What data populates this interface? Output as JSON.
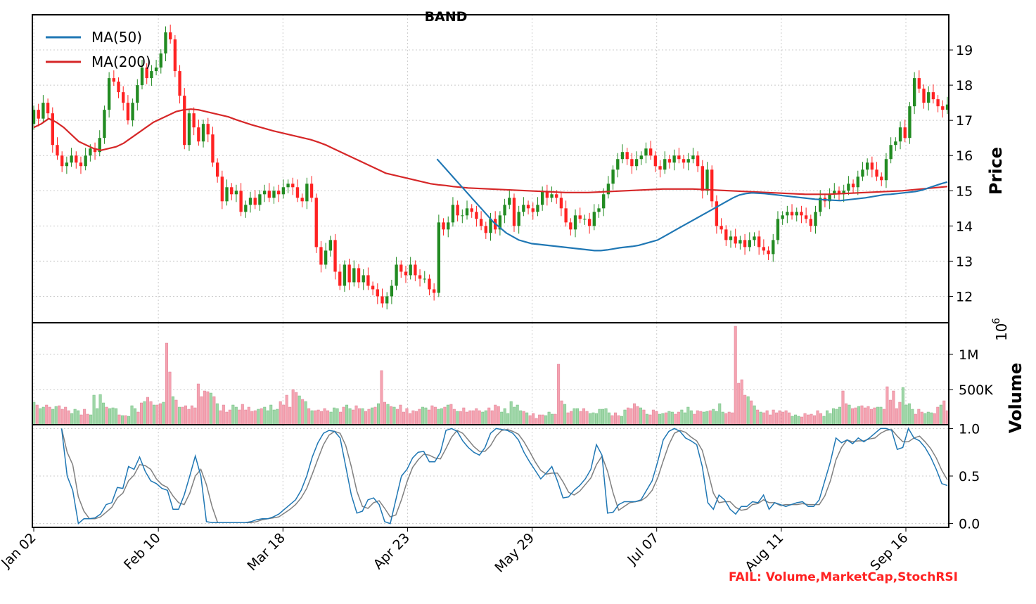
{
  "chart_data": {
    "type": "candlestick",
    "title": "BAND",
    "status_text": "FAIL: Volume,MarketCap,StochRSI",
    "x_tick_labels": [
      "Jan 02",
      "Feb 10",
      "Mar 18",
      "Apr 23",
      "May 29",
      "Jul 07",
      "Aug 11",
      "Sep 16"
    ],
    "legend": [
      {
        "name": "MA(50)",
        "color": "#1f77b4"
      },
      {
        "name": "MA(200)",
        "color": "#d62728"
      }
    ],
    "legend_placement": "top-left",
    "grid": true,
    "colors": {
      "up": "#228b22",
      "down": "#ff2222",
      "volume_up": "#9fd6a8",
      "volume_down": "#f5a3b1",
      "stoch_k": "#1f77b4",
      "stoch_d": "#808080",
      "status": "#ff2222"
    },
    "price_panel": {
      "ylabel": "Price",
      "ylim": [
        11.25,
        20.0
      ],
      "y_ticks": [
        12,
        13,
        14,
        15,
        16,
        17,
        18,
        19
      ],
      "close": [
        17.3,
        17.05,
        17.5,
        17.2,
        16.3,
        16.0,
        15.7,
        15.8,
        16.0,
        15.8,
        15.7,
        16.0,
        16.2,
        16.1,
        16.5,
        17.3,
        18.2,
        18.1,
        17.8,
        17.5,
        17.0,
        17.5,
        18.0,
        18.5,
        18.2,
        18.4,
        18.5,
        18.9,
        19.5,
        19.3,
        18.4,
        17.7,
        16.3,
        17.2,
        16.8,
        16.4,
        16.9,
        16.6,
        15.8,
        15.4,
        14.7,
        15.1,
        14.9,
        15.0,
        14.4,
        14.6,
        14.8,
        14.6,
        14.9,
        15.0,
        14.8,
        15.0,
        14.9,
        15.1,
        15.2,
        15.1,
        14.8,
        14.7,
        15.2,
        14.8,
        13.4,
        12.9,
        13.3,
        13.6,
        12.7,
        12.3,
        12.9,
        12.4,
        12.8,
        12.4,
        12.6,
        12.3,
        12.2,
        12.0,
        11.8,
        12.0,
        12.3,
        12.9,
        12.7,
        12.6,
        12.9,
        12.6,
        12.5,
        12.5,
        12.2,
        12.1,
        14.1,
        13.9,
        14.1,
        14.6,
        14.3,
        14.3,
        14.5,
        14.4,
        14.2,
        14.0,
        13.8,
        14.2,
        13.9,
        14.3,
        14.6,
        14.8,
        14.0,
        14.4,
        14.6,
        14.5,
        14.4,
        14.6,
        15.0,
        14.8,
        14.9,
        14.8,
        14.5,
        14.1,
        13.9,
        14.3,
        14.2,
        14.2,
        14.0,
        14.4,
        14.5,
        14.9,
        15.2,
        15.6,
        15.9,
        16.1,
        15.9,
        15.7,
        15.9,
        16.0,
        16.2,
        16.0,
        15.7,
        15.6,
        15.9,
        15.8,
        16.0,
        15.9,
        15.8,
        15.9,
        16.0,
        15.7,
        15.0,
        15.6,
        14.7,
        14.0,
        13.9,
        13.6,
        13.7,
        13.5,
        13.6,
        13.4,
        13.6,
        13.7,
        13.4,
        13.3,
        13.2,
        13.6,
        14.2,
        14.3,
        14.4,
        14.3,
        14.4,
        14.3,
        14.2,
        14.0,
        14.4,
        14.8,
        14.7,
        14.9,
        15.0,
        14.9,
        15.0,
        15.2,
        15.1,
        15.4,
        15.6,
        15.8,
        15.6,
        15.4,
        15.3,
        15.9,
        16.3,
        16.4,
        16.8,
        16.5,
        17.4,
        18.2,
        17.9,
        17.5,
        17.8,
        17.6,
        17.4,
        17.3,
        17.45
      ],
      "ma50": [
        null,
        null,
        null,
        null,
        null,
        null,
        null,
        null,
        null,
        null,
        null,
        null,
        null,
        null,
        null,
        null,
        null,
        null,
        null,
        null,
        null,
        null,
        null,
        null,
        null,
        null,
        null,
        null,
        null,
        null,
        null,
        null,
        null,
        null,
        null,
        null,
        null,
        null,
        null,
        null,
        null,
        null,
        null,
        null,
        null,
        null,
        null,
        null,
        null,
        null,
        null,
        null,
        null,
        null,
        null,
        null,
        null,
        null,
        null,
        null,
        null,
        null,
        null,
        null,
        15.9,
        15.7,
        15.5,
        15.3,
        15.1,
        14.9,
        14.7,
        14.5,
        14.3,
        14.1,
        13.95,
        13.8,
        13.7,
        13.6,
        13.55,
        13.5,
        13.48,
        13.46,
        13.44,
        13.42,
        13.4,
        13.38,
        13.36,
        13.34,
        13.32,
        13.3,
        13.3,
        13.32,
        13.35,
        13.38,
        13.4,
        13.42,
        13.45,
        13.5,
        13.55,
        13.6,
        13.7,
        13.8,
        13.9,
        14.0,
        14.1,
        14.2,
        14.3,
        14.4,
        14.5,
        14.6,
        14.7,
        14.8,
        14.88,
        14.92,
        14.94,
        14.93,
        14.92,
        14.9,
        14.88,
        14.86,
        14.84,
        14.82,
        14.8,
        14.78,
        14.76,
        14.75,
        14.74,
        14.73,
        14.72,
        14.74,
        14.76,
        14.78,
        14.8,
        14.83,
        14.86,
        14.89,
        14.9,
        14.92,
        14.94,
        14.96,
        14.98,
        15.02,
        15.08,
        15.14,
        15.2,
        15.25
      ],
      "ma200": [
        16.8,
        16.9,
        17.05,
        16.95,
        16.8,
        16.6,
        16.4,
        16.3,
        16.2,
        16.15,
        16.2,
        16.25,
        16.35,
        16.5,
        16.65,
        16.8,
        16.95,
        17.05,
        17.15,
        17.25,
        17.3,
        17.32,
        17.3,
        17.25,
        17.2,
        17.15,
        17.1,
        17.02,
        16.95,
        16.88,
        16.82,
        16.76,
        16.7,
        16.65,
        16.6,
        16.55,
        16.5,
        16.45,
        16.38,
        16.3,
        16.2,
        16.1,
        16.0,
        15.9,
        15.8,
        15.7,
        15.6,
        15.5,
        15.45,
        15.4,
        15.35,
        15.3,
        15.25,
        15.2,
        15.17,
        15.15,
        15.12,
        15.1,
        15.08,
        15.07,
        15.06,
        15.05,
        15.04,
        15.03,
        15.02,
        15.01,
        15.0,
        14.99,
        14.98,
        14.97,
        14.96,
        14.95,
        14.95,
        14.95,
        14.95,
        14.96,
        14.97,
        14.98,
        14.99,
        15.0,
        15.01,
        15.02,
        15.03,
        15.04,
        15.05,
        15.05,
        15.05,
        15.05,
        15.05,
        15.04,
        15.03,
        15.02,
        15.01,
        15.0,
        14.99,
        14.98,
        14.97,
        14.96,
        14.95,
        14.94,
        14.93,
        14.92,
        14.91,
        14.9,
        14.9,
        14.9,
        14.9,
        14.91,
        14.92,
        14.93,
        14.94,
        14.95,
        14.96,
        14.97,
        14.98,
        14.99,
        15.0,
        15.02,
        15.04,
        15.06,
        15.08,
        15.1,
        15.12
      ]
    },
    "volume_panel": {
      "ylabel": "Volume",
      "y_scale_label": "10",
      "y_scale_exponent": "6",
      "ylim": [
        0,
        1450000
      ],
      "y_ticks": [
        500000,
        1000000
      ],
      "y_tick_labels": [
        "500K",
        "1M"
      ],
      "values": [
        320000,
        280000,
        230000,
        250000,
        280000,
        250000,
        220000,
        260000,
        270000,
        220000,
        250000,
        200000,
        160000,
        220000,
        200000,
        140000,
        220000,
        150000,
        140000,
        420000,
        230000,
        430000,
        310000,
        250000,
        230000,
        240000,
        230000,
        140000,
        130000,
        130000,
        120000,
        270000,
        230000,
        180000,
        310000,
        330000,
        390000,
        330000,
        280000,
        280000,
        300000,
        320000,
        1160000,
        750000,
        400000,
        350000,
        250000,
        250000,
        270000,
        220000,
        270000,
        240000,
        580000,
        400000,
        480000,
        470000,
        450000,
        400000,
        300000,
        200000,
        280000,
        180000,
        210000,
        280000,
        250000,
        210000,
        290000,
        210000,
        250000,
        190000,
        200000,
        220000,
        230000,
        250000,
        200000,
        280000,
        210000,
        220000,
        330000,
        280000,
        420000,
        250000,
        500000,
        460000,
        410000,
        360000,
        330000,
        230000,
        200000,
        200000,
        210000,
        190000,
        230000,
        200000,
        180000,
        240000,
        230000,
        180000,
        250000,
        280000,
        230000,
        210000,
        270000,
        230000,
        230000,
        190000,
        220000,
        240000,
        250000,
        300000,
        770000,
        320000,
        290000,
        260000,
        250000,
        220000,
        280000,
        180000,
        230000,
        160000,
        200000,
        190000,
        220000,
        250000,
        240000,
        210000,
        270000,
        250000,
        220000,
        230000,
        250000,
        280000,
        290000,
        220000,
        190000,
        190000,
        240000,
        180000,
        200000,
        200000,
        230000,
        200000,
        180000,
        200000,
        240000,
        200000,
        280000,
        260000,
        180000,
        230000,
        160000,
        330000,
        250000,
        280000,
        200000,
        190000,
        170000,
        130000,
        160000,
        90000,
        140000,
        140000,
        130000,
        180000,
        150000,
        150000,
        860000,
        340000,
        290000,
        170000,
        190000,
        230000,
        230000,
        190000,
        230000,
        190000,
        160000,
        170000,
        160000,
        220000,
        220000,
        230000,
        170000,
        130000,
        170000,
        130000,
        120000,
        210000,
        240000,
        230000,
        300000,
        260000,
        240000,
        210000,
        150000,
        140000,
        210000,
        190000,
        150000,
        160000,
        170000,
        190000,
        180000,
        150000,
        180000,
        210000,
        170000,
        250000,
        200000,
        150000,
        200000,
        190000,
        180000,
        190000,
        200000,
        220000,
        190000,
        300000,
        180000,
        160000,
        180000,
        170000,
        1400000,
        590000,
        640000,
        420000,
        400000,
        340000,
        270000,
        210000,
        180000,
        170000,
        200000,
        140000,
        210000,
        170000,
        200000,
        180000,
        200000,
        170000,
        120000,
        140000,
        120000,
        110000,
        160000,
        140000,
        150000,
        130000,
        200000,
        160000,
        120000,
        200000,
        160000,
        230000,
        220000,
        250000,
        480000,
        300000,
        280000,
        230000,
        240000,
        260000,
        270000,
        240000,
        260000,
        220000,
        240000,
        250000,
        250000,
        220000,
        540000,
        350000,
        480000,
        230000,
        320000,
        530000,
        280000,
        300000,
        220000,
        150000,
        220000,
        180000,
        160000,
        180000,
        170000,
        160000,
        250000,
        280000,
        340000,
        200000
      ]
    },
    "stoch_panel": {
      "ylim": [
        -0.04,
        1.04
      ],
      "y_ticks": [
        0.0,
        0.5,
        1.0
      ],
      "y_tick_labels": [
        "0.0",
        "0.5",
        "1.0"
      ],
      "k": [
        null,
        null,
        null,
        null,
        null,
        1.0,
        0.5,
        0.35,
        0.0,
        0.05,
        0.05,
        0.06,
        0.1,
        0.2,
        0.22,
        0.38,
        0.37,
        0.6,
        0.57,
        0.7,
        0.55,
        0.45,
        0.42,
        0.37,
        0.35,
        0.15,
        0.15,
        0.3,
        0.5,
        0.71,
        0.5,
        0.02,
        0.01,
        0.01,
        0.01,
        0.01,
        0.01,
        0.01,
        0.01,
        0.02,
        0.04,
        0.05,
        0.05,
        0.07,
        0.1,
        0.15,
        0.2,
        0.25,
        0.35,
        0.5,
        0.7,
        0.85,
        0.95,
        0.98,
        0.97,
        0.9,
        0.6,
        0.3,
        0.11,
        0.13,
        0.25,
        0.27,
        0.2,
        0.02,
        0.0,
        0.25,
        0.5,
        0.57,
        0.69,
        0.75,
        0.76,
        0.65,
        0.65,
        0.75,
        0.98,
        1.0,
        0.97,
        0.87,
        0.8,
        0.75,
        0.72,
        0.8,
        0.95,
        1.0,
        0.99,
        0.98,
        0.95,
        0.88,
        0.75,
        0.65,
        0.56,
        0.47,
        0.53,
        0.6,
        0.45,
        0.27,
        0.28,
        0.35,
        0.4,
        0.47,
        0.57,
        0.83,
        0.72,
        0.11,
        0.12,
        0.2,
        0.23,
        0.23,
        0.23,
        0.25,
        0.35,
        0.45,
        0.65,
        0.88,
        0.97,
        1.0,
        0.97,
        0.9,
        0.87,
        0.83,
        0.6,
        0.22,
        0.15,
        0.3,
        0.25,
        0.15,
        0.1,
        0.18,
        0.18,
        0.23,
        0.22,
        0.3,
        0.15,
        0.22,
        0.2,
        0.18,
        0.2,
        0.22,
        0.23,
        0.18,
        0.18,
        0.25,
        0.45,
        0.65,
        0.9,
        0.85,
        0.88,
        0.84,
        0.9,
        0.86,
        0.9,
        0.95,
        1.0,
        1.0,
        0.98,
        0.78,
        0.8,
        1.0,
        0.9,
        0.87,
        0.8,
        0.7,
        0.57,
        0.42,
        0.4
      ],
      "d": [
        null,
        null,
        null,
        null,
        null,
        1.0,
        0.75,
        0.62,
        0.28,
        0.13,
        0.05,
        0.05,
        0.07,
        0.12,
        0.17,
        0.27,
        0.32,
        0.45,
        0.51,
        0.62,
        0.61,
        0.57,
        0.47,
        0.41,
        0.38,
        0.29,
        0.22,
        0.2,
        0.32,
        0.5,
        0.57,
        0.41,
        0.18,
        0.01,
        0.01,
        0.01,
        0.01,
        0.01,
        0.01,
        0.01,
        0.02,
        0.04,
        0.05,
        0.06,
        0.07,
        0.11,
        0.15,
        0.2,
        0.27,
        0.37,
        0.52,
        0.68,
        0.83,
        0.93,
        0.97,
        0.95,
        0.82,
        0.6,
        0.34,
        0.18,
        0.16,
        0.22,
        0.24,
        0.16,
        0.07,
        0.09,
        0.25,
        0.44,
        0.59,
        0.67,
        0.73,
        0.72,
        0.69,
        0.68,
        0.79,
        0.91,
        0.98,
        0.95,
        0.88,
        0.81,
        0.76,
        0.76,
        0.82,
        0.92,
        0.98,
        0.99,
        0.97,
        0.94,
        0.86,
        0.76,
        0.65,
        0.56,
        0.52,
        0.53,
        0.53,
        0.44,
        0.33,
        0.3,
        0.34,
        0.41,
        0.48,
        0.62,
        0.71,
        0.55,
        0.32,
        0.14,
        0.18,
        0.22,
        0.23,
        0.24,
        0.28,
        0.35,
        0.48,
        0.66,
        0.83,
        0.95,
        0.98,
        0.96,
        0.91,
        0.87,
        0.77,
        0.55,
        0.32,
        0.22,
        0.23,
        0.23,
        0.17,
        0.14,
        0.15,
        0.2,
        0.21,
        0.25,
        0.22,
        0.22,
        0.19,
        0.2,
        0.2,
        0.2,
        0.21,
        0.2,
        0.2,
        0.2,
        0.29,
        0.45,
        0.67,
        0.8,
        0.88,
        0.86,
        0.87,
        0.87,
        0.89,
        0.9,
        0.95,
        0.98,
        0.99,
        0.92,
        0.86,
        0.86,
        0.9,
        0.92,
        0.86,
        0.79,
        0.69,
        0.56,
        0.46
      ]
    }
  }
}
